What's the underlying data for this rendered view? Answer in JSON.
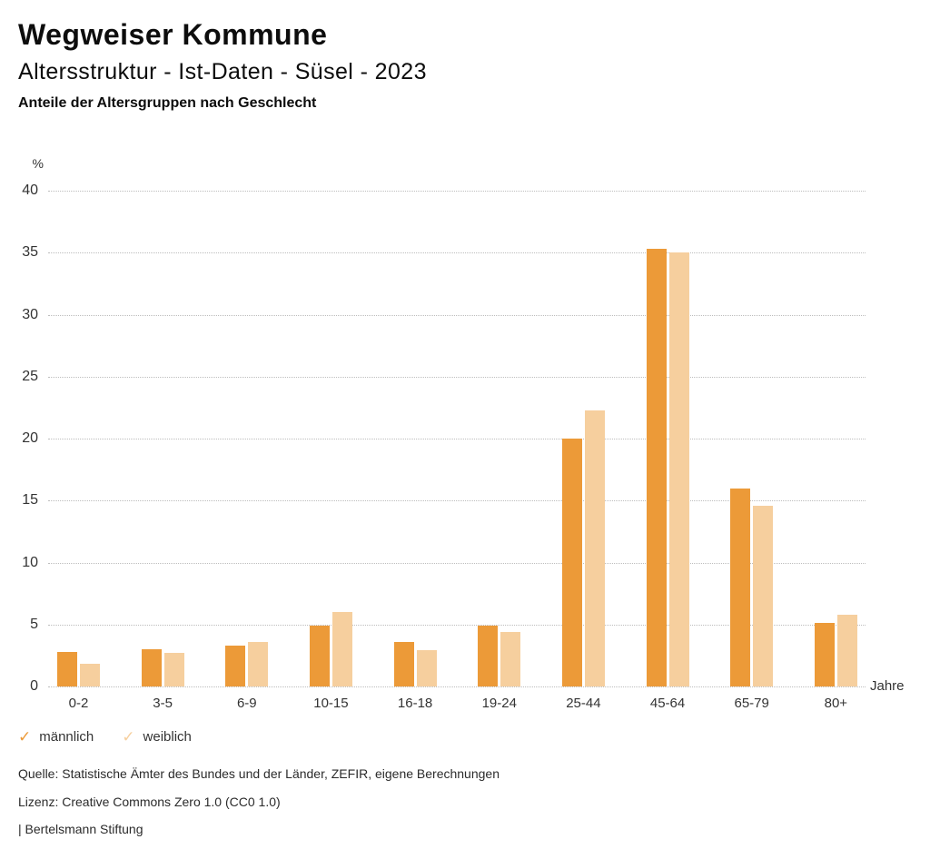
{
  "header": {
    "title": "Wegweiser Kommune",
    "subtitle": "Altersstruktur - Ist-Daten - Süsel - 2023",
    "heading": "Anteile der Altersgruppen nach Geschlecht"
  },
  "icons": {
    "check": "✓"
  },
  "chart_data": {
    "type": "bar",
    "title": "Anteile der Altersgruppen nach Geschlecht",
    "categories": [
      "0-2",
      "3-5",
      "6-9",
      "10-15",
      "16-18",
      "19-24",
      "25-44",
      "45-64",
      "65-79",
      "80+"
    ],
    "series": [
      {
        "name": "männlich",
        "color": "#EC9A38",
        "values": [
          2.8,
          3.0,
          3.3,
          4.9,
          3.6,
          4.9,
          20.0,
          35.3,
          16.0,
          5.1
        ]
      },
      {
        "name": "weiblich",
        "color": "#F6CF9E",
        "values": [
          1.8,
          2.7,
          3.6,
          6.0,
          2.9,
          4.4,
          22.3,
          35.0,
          14.6,
          5.8
        ]
      }
    ],
    "xlabel": "Jahre",
    "ylabel": "%",
    "ylim": [
      0,
      40
    ],
    "ytick_step": 5,
    "grid": true,
    "gridline_style": "dotted",
    "legend_position": "bottom-left"
  },
  "footer": {
    "source": "Quelle: Statistische Ämter des Bundes und der Länder, ZEFIR, eigene Berechnungen",
    "license": "Lizenz: Creative Commons Zero 1.0 (CC0 1.0)",
    "attribution": "| Bertelsmann Stiftung"
  }
}
